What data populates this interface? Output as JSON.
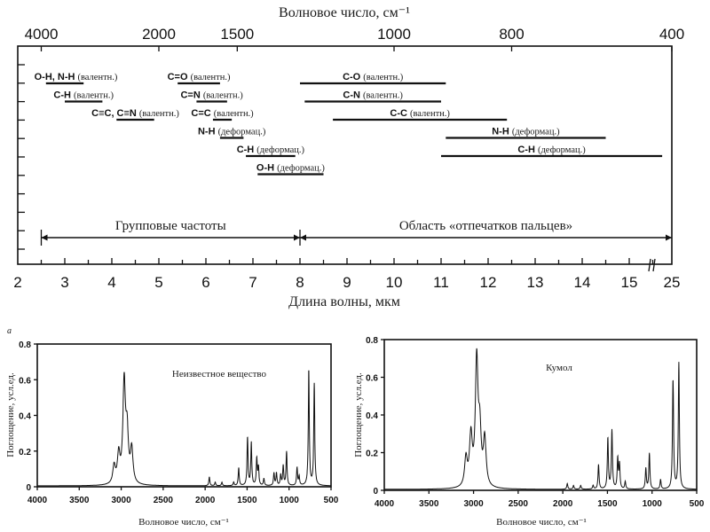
{
  "chart_data": [
    {
      "type": "diagram-ranges",
      "title": "Волновое число, см⁻¹",
      "xlabel": "Длина волны, мкм",
      "top_axis_ticks": [
        4000,
        2000,
        1500,
        1000,
        800,
        400
      ],
      "bottom_axis_ticks": [
        2,
        3,
        4,
        5,
        6,
        7,
        8,
        9,
        10,
        11,
        12,
        13,
        14,
        15,
        25
      ],
      "xlim_um": [
        2,
        25
      ],
      "bands": [
        {
          "formula": "O-H, N-H",
          "mode": "(валентн.)",
          "from_um": 2.6,
          "to_um": 3.4,
          "row": 0
        },
        {
          "formula": "C-H",
          "mode": "(валентн.)",
          "from_um": 3.0,
          "to_um": 3.8,
          "row": 1
        },
        {
          "formula": "C≡C, C≡N",
          "mode": "(валентн.)",
          "from_um": 4.1,
          "to_um": 4.9,
          "row": 2
        },
        {
          "formula": "C=O",
          "mode": "(валентн.)",
          "from_um": 5.4,
          "to_um": 6.3,
          "row": 0
        },
        {
          "formula": "C=N",
          "mode": "(валентн.)",
          "from_um": 5.8,
          "to_um": 6.45,
          "row": 1
        },
        {
          "formula": "C=C",
          "mode": "(валентн.)",
          "from_um": 6.15,
          "to_um": 6.55,
          "row": 2
        },
        {
          "formula": "N-H",
          "mode": "(деформац.)",
          "from_um": 6.3,
          "to_um": 6.8,
          "row": 3
        },
        {
          "formula": "C-H",
          "mode": "(деформац.)",
          "from_um": 6.85,
          "to_um": 7.9,
          "row": 4
        },
        {
          "formula": "O-H",
          "mode": "(деформац.)",
          "from_um": 7.1,
          "to_um": 8.5,
          "row": 5
        },
        {
          "formula": "C-O",
          "mode": "(валентн.)",
          "from_um": 8.0,
          "to_um": 11.1,
          "row": 0
        },
        {
          "formula": "C-N",
          "mode": "(валентн.)",
          "from_um": 8.1,
          "to_um": 11.0,
          "row": 1
        },
        {
          "formula": "C-C",
          "mode": "(валентн.)",
          "from_um": 8.7,
          "to_um": 12.4,
          "row": 2
        },
        {
          "formula": "N-H",
          "mode": "(деформац.)",
          "from_um": 11.1,
          "to_um": 14.5,
          "row": 3
        },
        {
          "formula": "C-H",
          "mode": "(деформац.)",
          "from_um": 11.0,
          "to_um": 15.7,
          "row": 4
        }
      ],
      "regions": [
        {
          "label": "Групповые частоты",
          "from_um": 2.5,
          "to_um": 8
        },
        {
          "label": "Область «отпечатков пальцев»",
          "from_um": 8,
          "to_um": 25
        }
      ]
    },
    {
      "type": "line",
      "panel_label": "а",
      "title": "Неизвестное вещество",
      "xlabel": "Волновое число, см⁻¹",
      "ylabel": "Поглощение, усл.ед.",
      "xlim": [
        4000,
        500
      ],
      "ylim": [
        0,
        0.8
      ],
      "xticks": [
        4000,
        3500,
        3000,
        2500,
        2000,
        1500,
        1000,
        500
      ],
      "yticks": [
        "0",
        "0.2",
        "0.4",
        "0.6",
        "0.8"
      ],
      "peaks": [
        [
          3085,
          0.1
        ],
        [
          3030,
          0.16
        ],
        [
          2965,
          0.56
        ],
        [
          2930,
          0.27
        ],
        [
          2875,
          0.19
        ],
        [
          1950,
          0.05
        ],
        [
          1880,
          0.02
        ],
        [
          1800,
          0.02
        ],
        [
          1660,
          0.02
        ],
        [
          1600,
          0.1
        ],
        [
          1495,
          0.27
        ],
        [
          1450,
          0.24
        ],
        [
          1385,
          0.15
        ],
        [
          1365,
          0.1
        ],
        [
          1300,
          0.04
        ],
        [
          1180,
          0.07
        ],
        [
          1150,
          0.07
        ],
        [
          1100,
          0.06
        ],
        [
          1070,
          0.11
        ],
        [
          1030,
          0.19
        ],
        [
          905,
          0.1
        ],
        [
          880,
          0.05
        ],
        [
          765,
          0.65
        ],
        [
          700,
          0.57
        ]
      ]
    },
    {
      "type": "line",
      "title": "Кумол",
      "xlabel": "Волновое число, см⁻¹",
      "ylabel": "Поглощение, усл.ед.",
      "xlim": [
        4000,
        500
      ],
      "ylim": [
        0,
        0.8
      ],
      "xticks": [
        4000,
        3500,
        3000,
        2500,
        2000,
        1500,
        1000,
        500
      ],
      "yticks": [
        "0",
        "0.2",
        "0.4",
        "0.6",
        "0.8"
      ],
      "peaks": [
        [
          3085,
          0.15
        ],
        [
          3030,
          0.26
        ],
        [
          2965,
          0.66
        ],
        [
          2930,
          0.27
        ],
        [
          2875,
          0.25
        ],
        [
          1950,
          0.03
        ],
        [
          1880,
          0.02
        ],
        [
          1800,
          0.02
        ],
        [
          1660,
          0.02
        ],
        [
          1600,
          0.13
        ],
        [
          1495,
          0.27
        ],
        [
          1450,
          0.31
        ],
        [
          1385,
          0.16
        ],
        [
          1365,
          0.13
        ],
        [
          1300,
          0.04
        ],
        [
          1070,
          0.11
        ],
        [
          1030,
          0.19
        ],
        [
          905,
          0.05
        ],
        [
          765,
          0.58
        ],
        [
          700,
          0.67
        ]
      ]
    }
  ]
}
